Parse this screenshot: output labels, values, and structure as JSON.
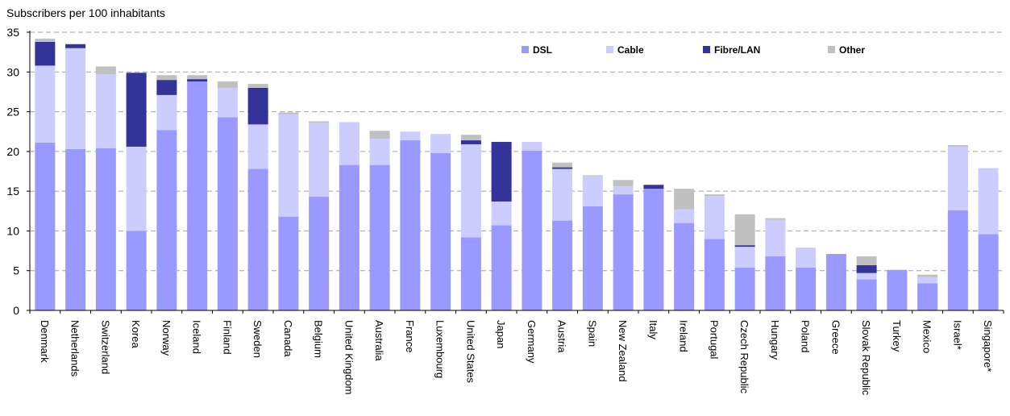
{
  "chart_data": {
    "type": "bar",
    "stacked": true,
    "ylabel": "Subscribers per 100 inhabitants",
    "ylim": [
      0,
      35
    ],
    "yticks": [
      0,
      5,
      10,
      15,
      20,
      25,
      30,
      35
    ],
    "grid": "horizontal dashed",
    "legend_position": "top-right",
    "categories": [
      "Denmark",
      "Netherlands",
      "Switzerland",
      "Korea",
      "Norway",
      "Iceland",
      "Finland",
      "Sweden",
      "Canada",
      "Belgium",
      "United Kingdom",
      "Australia",
      "France",
      "Luxembourg",
      "United States",
      "Japan",
      "Germany",
      "Austria",
      "Spain",
      "New Zealand",
      "Italy",
      "Ireland",
      "Portugal",
      "Czech Republic",
      "Hungary",
      "Poland",
      "Greece",
      "Slovak Republic",
      "Turkey",
      "Mexico",
      "Israel*",
      "Singapore*"
    ],
    "series": [
      {
        "name": "DSL",
        "color": "#9999ff",
        "values": [
          21.1,
          20.3,
          20.4,
          10.0,
          22.7,
          28.8,
          24.3,
          17.8,
          11.8,
          14.3,
          18.3,
          18.3,
          21.4,
          19.8,
          9.2,
          10.7,
          20.1,
          11.3,
          13.1,
          14.6,
          15.3,
          11.0,
          9.0,
          5.4,
          6.8,
          5.4,
          7.1,
          3.9,
          5.1,
          3.4,
          12.6,
          9.6
        ]
      },
      {
        "name": "Cable",
        "color": "#ccccff",
        "values": [
          9.7,
          12.7,
          9.3,
          10.6,
          4.4,
          0.0,
          3.7,
          5.6,
          12.9,
          9.3,
          5.4,
          3.3,
          1.1,
          2.4,
          11.7,
          3.0,
          1.1,
          6.5,
          3.8,
          1.0,
          0.0,
          1.7,
          5.4,
          2.6,
          4.6,
          2.5,
          0.0,
          0.8,
          0.0,
          0.8,
          8.0,
          8.3
        ]
      },
      {
        "name": "Fibre/LAN",
        "color": "#333399",
        "values": [
          3.0,
          0.5,
          0.0,
          9.3,
          1.9,
          0.3,
          0.0,
          4.6,
          0.0,
          0.0,
          0.0,
          0.0,
          0.0,
          0.0,
          0.5,
          7.5,
          0.0,
          0.2,
          0.0,
          0.0,
          0.5,
          0.0,
          0.0,
          0.2,
          0.0,
          0.0,
          0.0,
          1.0,
          0.0,
          0.0,
          0.0,
          0.0
        ]
      },
      {
        "name": "Other",
        "color": "#c0c0c0",
        "values": [
          0.4,
          0.0,
          1.0,
          0.0,
          0.6,
          0.5,
          0.8,
          0.5,
          0.2,
          0.2,
          0.0,
          1.0,
          0.0,
          0.0,
          0.7,
          0.0,
          0.0,
          0.6,
          0.1,
          0.8,
          0.0,
          2.6,
          0.2,
          3.9,
          0.2,
          0.0,
          0.0,
          1.1,
          0.0,
          0.3,
          0.2,
          0.0
        ]
      }
    ]
  }
}
